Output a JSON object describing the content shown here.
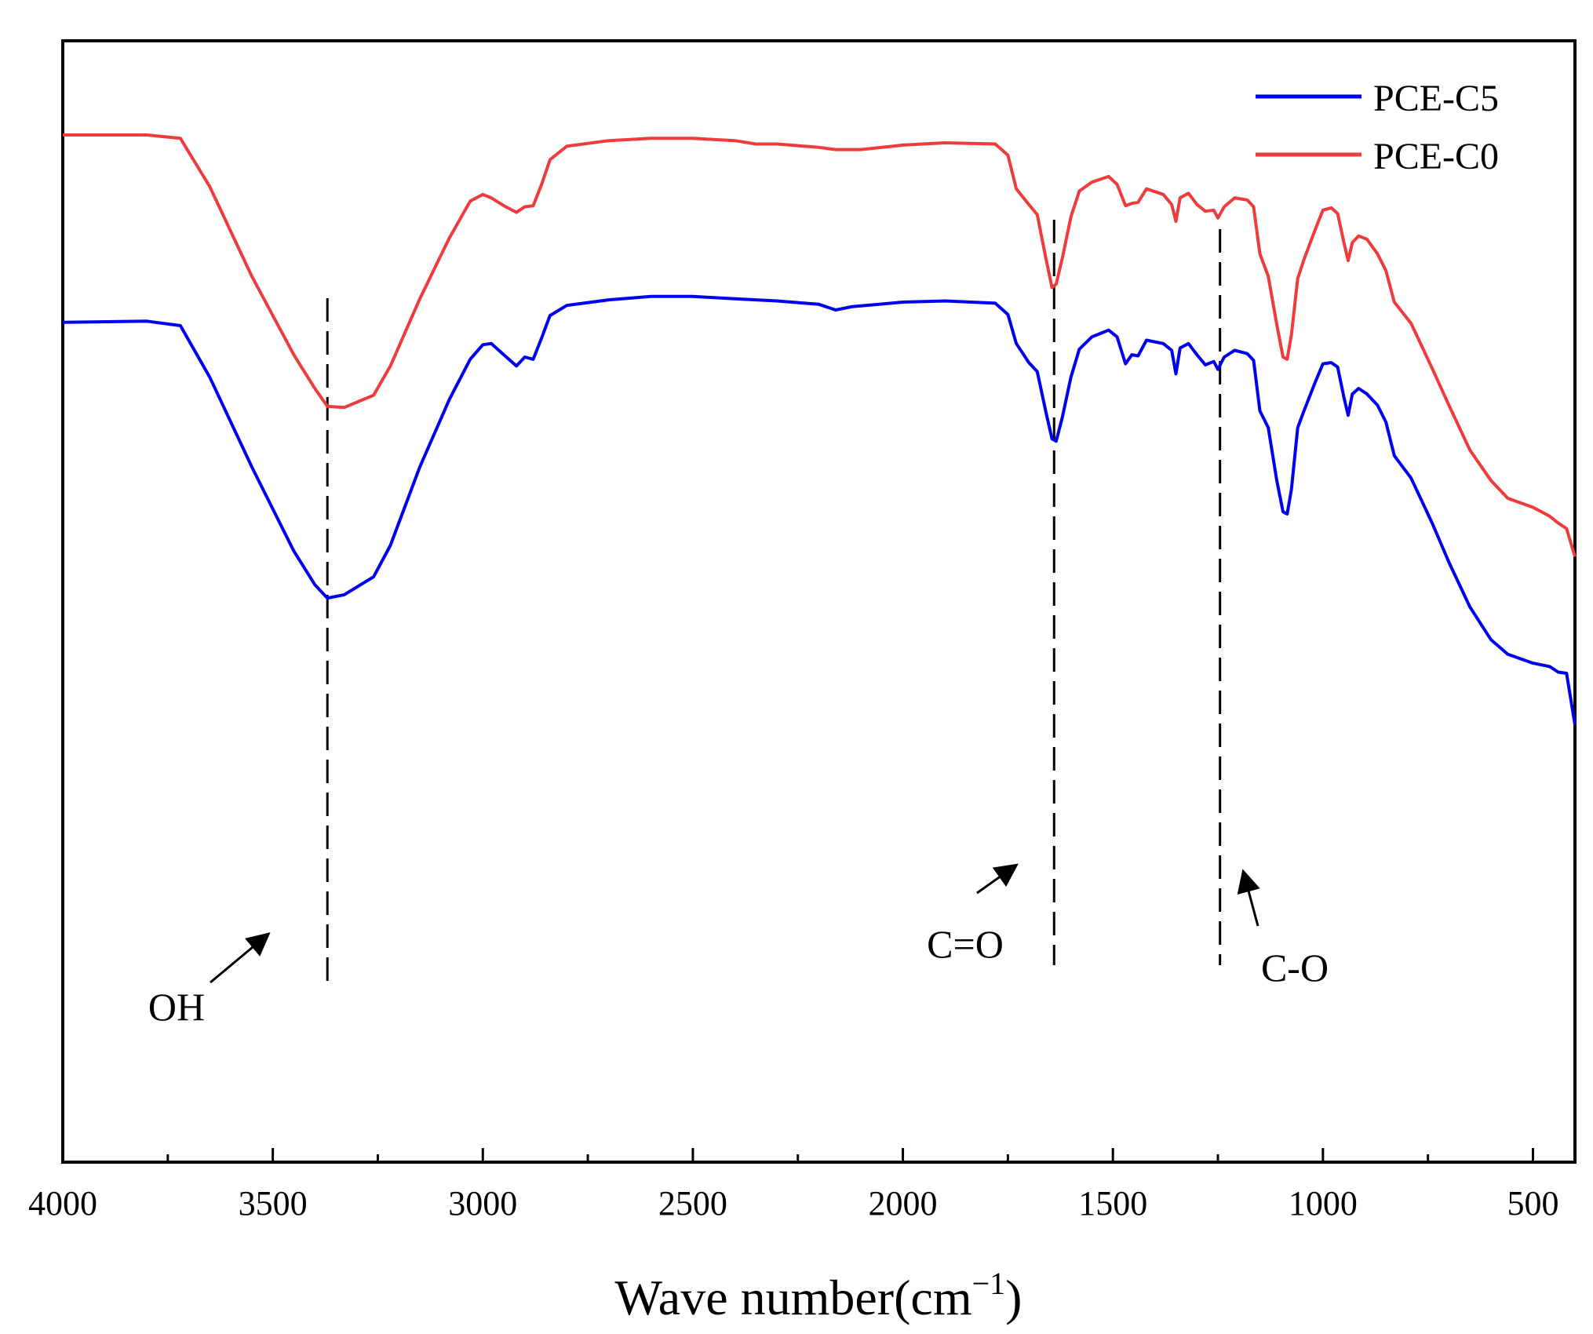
{
  "chart_data": {
    "type": "line",
    "title": "",
    "xlabel_main": "Wave number(cm",
    "xlabel_sup": "−1",
    "xlabel_close": ")",
    "ylabel": "",
    "xlim": [
      4000,
      400
    ],
    "ylim": [
      0,
      100
    ],
    "x_ticks": [
      4000,
      3500,
      3000,
      2500,
      2000,
      1500,
      1000,
      500
    ],
    "x_tick_labels": [
      "4000",
      "3500",
      "3000",
      "2500",
      "2000",
      "1500",
      "1000",
      "500"
    ],
    "x_minor_ticks": [
      3750,
      3250,
      2750,
      2250,
      1750,
      1250,
      750
    ],
    "legend_position": "top-right",
    "series": [
      {
        "name": "PCE-C5",
        "color": "#0000ee",
        "points": [
          [
            4000,
            74.9
          ],
          [
            3800,
            75
          ],
          [
            3720,
            74.6
          ],
          [
            3650,
            70
          ],
          [
            3550,
            62
          ],
          [
            3450,
            54.5
          ],
          [
            3400,
            51.5
          ],
          [
            3370,
            50.3
          ],
          [
            3330,
            50.6
          ],
          [
            3260,
            52.2
          ],
          [
            3220,
            55
          ],
          [
            3150,
            62
          ],
          [
            3080,
            68
          ],
          [
            3030,
            71.6
          ],
          [
            3000,
            72.9
          ],
          [
            2980,
            73
          ],
          [
            2950,
            72
          ],
          [
            2920,
            71
          ],
          [
            2900,
            71.8
          ],
          [
            2880,
            71.6
          ],
          [
            2860,
            73.5
          ],
          [
            2840,
            75.5
          ],
          [
            2800,
            76.4
          ],
          [
            2700,
            76.9
          ],
          [
            2600,
            77.2
          ],
          [
            2500,
            77.2
          ],
          [
            2400,
            77
          ],
          [
            2300,
            76.8
          ],
          [
            2200,
            76.5
          ],
          [
            2160,
            76
          ],
          [
            2120,
            76.3
          ],
          [
            2000,
            76.7
          ],
          [
            1900,
            76.8
          ],
          [
            1780,
            76.6
          ],
          [
            1750,
            75.6
          ],
          [
            1730,
            73
          ],
          [
            1700,
            71.3
          ],
          [
            1680,
            70.5
          ],
          [
            1660,
            67
          ],
          [
            1645,
            64.5
          ],
          [
            1635,
            64.3
          ],
          [
            1620,
            66.5
          ],
          [
            1600,
            70
          ],
          [
            1580,
            72.5
          ],
          [
            1550,
            73.6
          ],
          [
            1510,
            74.2
          ],
          [
            1490,
            73.6
          ],
          [
            1470,
            71.2
          ],
          [
            1455,
            72
          ],
          [
            1440,
            71.9
          ],
          [
            1420,
            73.3
          ],
          [
            1380,
            73
          ],
          [
            1360,
            72.4
          ],
          [
            1350,
            70.3
          ],
          [
            1340,
            72.6
          ],
          [
            1320,
            73
          ],
          [
            1300,
            72
          ],
          [
            1280,
            71.1
          ],
          [
            1260,
            71.4
          ],
          [
            1250,
            70.7
          ],
          [
            1235,
            71.8
          ],
          [
            1210,
            72.4
          ],
          [
            1180,
            72.1
          ],
          [
            1165,
            71.5
          ],
          [
            1150,
            67
          ],
          [
            1130,
            65.5
          ],
          [
            1110,
            60.8
          ],
          [
            1095,
            58
          ],
          [
            1085,
            57.8
          ],
          [
            1075,
            60
          ],
          [
            1060,
            65.5
          ],
          [
            1045,
            67
          ],
          [
            1020,
            69.4
          ],
          [
            1000,
            71.2
          ],
          [
            980,
            71.3
          ],
          [
            965,
            70.9
          ],
          [
            950,
            68.2
          ],
          [
            940,
            66.6
          ],
          [
            930,
            68.5
          ],
          [
            915,
            69
          ],
          [
            895,
            68.5
          ],
          [
            870,
            67.5
          ],
          [
            850,
            66
          ],
          [
            830,
            63
          ],
          [
            790,
            61
          ],
          [
            740,
            57
          ],
          [
            700,
            53.5
          ],
          [
            650,
            49.5
          ],
          [
            600,
            46.6
          ],
          [
            560,
            45.3
          ],
          [
            500,
            44.5
          ],
          [
            460,
            44.2
          ],
          [
            440,
            43.7
          ],
          [
            420,
            43.6
          ],
          [
            400,
            39
          ]
        ]
      },
      {
        "name": "PCE-C0",
        "color": "#ee3b3b",
        "points": [
          [
            4000,
            91.6
          ],
          [
            3800,
            91.6
          ],
          [
            3720,
            91.3
          ],
          [
            3650,
            87
          ],
          [
            3550,
            79
          ],
          [
            3450,
            72
          ],
          [
            3400,
            69
          ],
          [
            3370,
            67.4
          ],
          [
            3330,
            67.3
          ],
          [
            3260,
            68.4
          ],
          [
            3220,
            71
          ],
          [
            3150,
            77
          ],
          [
            3080,
            82.4
          ],
          [
            3030,
            85.7
          ],
          [
            3000,
            86.3
          ],
          [
            2980,
            86
          ],
          [
            2950,
            85.3
          ],
          [
            2920,
            84.7
          ],
          [
            2900,
            85.2
          ],
          [
            2880,
            85.3
          ],
          [
            2860,
            87.2
          ],
          [
            2840,
            89.4
          ],
          [
            2800,
            90.6
          ],
          [
            2700,
            91.1
          ],
          [
            2600,
            91.3
          ],
          [
            2500,
            91.3
          ],
          [
            2400,
            91.1
          ],
          [
            2350,
            90.8
          ],
          [
            2300,
            90.8
          ],
          [
            2200,
            90.5
          ],
          [
            2160,
            90.3
          ],
          [
            2100,
            90.3
          ],
          [
            2000,
            90.7
          ],
          [
            1900,
            90.9
          ],
          [
            1780,
            90.8
          ],
          [
            1750,
            89.8
          ],
          [
            1730,
            86.8
          ],
          [
            1700,
            85.4
          ],
          [
            1680,
            84.5
          ],
          [
            1660,
            80.7
          ],
          [
            1645,
            78
          ],
          [
            1635,
            78.3
          ],
          [
            1620,
            80.7
          ],
          [
            1600,
            84.3
          ],
          [
            1580,
            86.6
          ],
          [
            1550,
            87.4
          ],
          [
            1510,
            87.9
          ],
          [
            1490,
            87.2
          ],
          [
            1470,
            85.3
          ],
          [
            1455,
            85.5
          ],
          [
            1440,
            85.6
          ],
          [
            1420,
            86.8
          ],
          [
            1380,
            86.3
          ],
          [
            1360,
            85.4
          ],
          [
            1350,
            83.9
          ],
          [
            1340,
            86
          ],
          [
            1320,
            86.4
          ],
          [
            1300,
            85.4
          ],
          [
            1280,
            84.8
          ],
          [
            1260,
            84.9
          ],
          [
            1250,
            84.2
          ],
          [
            1235,
            85.2
          ],
          [
            1210,
            86
          ],
          [
            1180,
            85.8
          ],
          [
            1165,
            85.2
          ],
          [
            1150,
            81
          ],
          [
            1130,
            79
          ],
          [
            1110,
            74.7
          ],
          [
            1095,
            71.8
          ],
          [
            1085,
            71.6
          ],
          [
            1075,
            73.8
          ],
          [
            1060,
            78.8
          ],
          [
            1045,
            80.5
          ],
          [
            1020,
            83
          ],
          [
            1000,
            84.9
          ],
          [
            980,
            85.1
          ],
          [
            965,
            84.6
          ],
          [
            950,
            82
          ],
          [
            940,
            80.4
          ],
          [
            930,
            82
          ],
          [
            915,
            82.6
          ],
          [
            895,
            82.3
          ],
          [
            870,
            81
          ],
          [
            850,
            79.5
          ],
          [
            830,
            76.7
          ],
          [
            790,
            74.8
          ],
          [
            740,
            70.8
          ],
          [
            700,
            67.5
          ],
          [
            650,
            63.5
          ],
          [
            600,
            60.8
          ],
          [
            560,
            59.2
          ],
          [
            500,
            58.4
          ],
          [
            460,
            57.6
          ],
          [
            440,
            57
          ],
          [
            420,
            56.5
          ],
          [
            400,
            54
          ]
        ]
      }
    ],
    "reference_lines": [
      {
        "x": 3370,
        "label": "OH"
      },
      {
        "x": 1640,
        "label": "C=O"
      },
      {
        "x": 1245,
        "label": "C-O"
      }
    ],
    "annotations": [
      {
        "text": "OH"
      },
      {
        "text": "C=O"
      },
      {
        "text": "C-O"
      }
    ]
  }
}
